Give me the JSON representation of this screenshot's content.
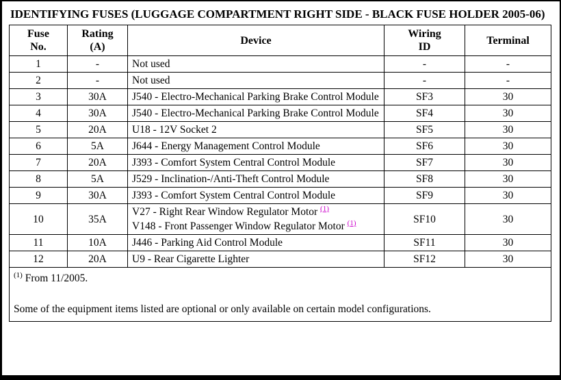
{
  "colors": {
    "border": "#000000",
    "background": "#ffffff",
    "footnote_link": "#cc00cc"
  },
  "page": {
    "title": "IDENTIFYING FUSES (LUGGAGE COMPARTMENT RIGHT SIDE - BLACK FUSE HOLDER 2005-06)",
    "footnote_marker": "(1)",
    "footnote_text": " From 11/2005.",
    "disclaimer": "Some of the equipment items listed are optional or only available on certain model configurations."
  },
  "table": {
    "headers": [
      "Fuse\nNo.",
      "Rating\n(A)",
      "Device",
      "Wiring\nID",
      "Terminal"
    ],
    "rows": [
      {
        "no": "1",
        "rating": "-",
        "device": "Not used",
        "wiring": "-",
        "terminal": "-"
      },
      {
        "no": "2",
        "rating": "-",
        "device": "Not used",
        "wiring": "-",
        "terminal": "-"
      },
      {
        "no": "3",
        "rating": "30A",
        "device": "J540 - Electro-Mechanical Parking Brake Control Module",
        "wiring": "SF3",
        "terminal": "30"
      },
      {
        "no": "4",
        "rating": "30A",
        "device": "J540 - Electro-Mechanical Parking Brake Control Module",
        "wiring": "SF4",
        "terminal": "30"
      },
      {
        "no": "5",
        "rating": "20A",
        "device": "U18 - 12V Socket 2",
        "wiring": "SF5",
        "terminal": "30"
      },
      {
        "no": "6",
        "rating": "5A",
        "device": "J644 - Energy Management Control Module",
        "wiring": "SF6",
        "terminal": "30"
      },
      {
        "no": "7",
        "rating": "20A",
        "device": "J393 - Comfort System Central Control Module",
        "wiring": "SF7",
        "terminal": "30"
      },
      {
        "no": "8",
        "rating": "5A",
        "device": "J529 - Inclination-/Anti-Theft Control Module",
        "wiring": "SF8",
        "terminal": "30"
      },
      {
        "no": "9",
        "rating": "30A",
        "device": "J393 - Comfort System Central Control Module",
        "wiring": "SF9",
        "terminal": "30"
      },
      {
        "no": "10",
        "rating": "35A",
        "device_parts": [
          {
            "text": "V27 - Right Rear Window Regulator Motor",
            "sup": "(1)"
          },
          {
            "text": "V148 - Front Passenger Window Regulator Motor",
            "sup": "(1)"
          }
        ],
        "wiring": "SF10",
        "terminal": "30"
      },
      {
        "no": "11",
        "rating": "10A",
        "device": "J446 - Parking Aid Control Module",
        "wiring": "SF11",
        "terminal": "30"
      },
      {
        "no": "12",
        "rating": "20A",
        "device": "U9 - Rear Cigarette Lighter",
        "wiring": "SF12",
        "terminal": "30"
      }
    ]
  }
}
